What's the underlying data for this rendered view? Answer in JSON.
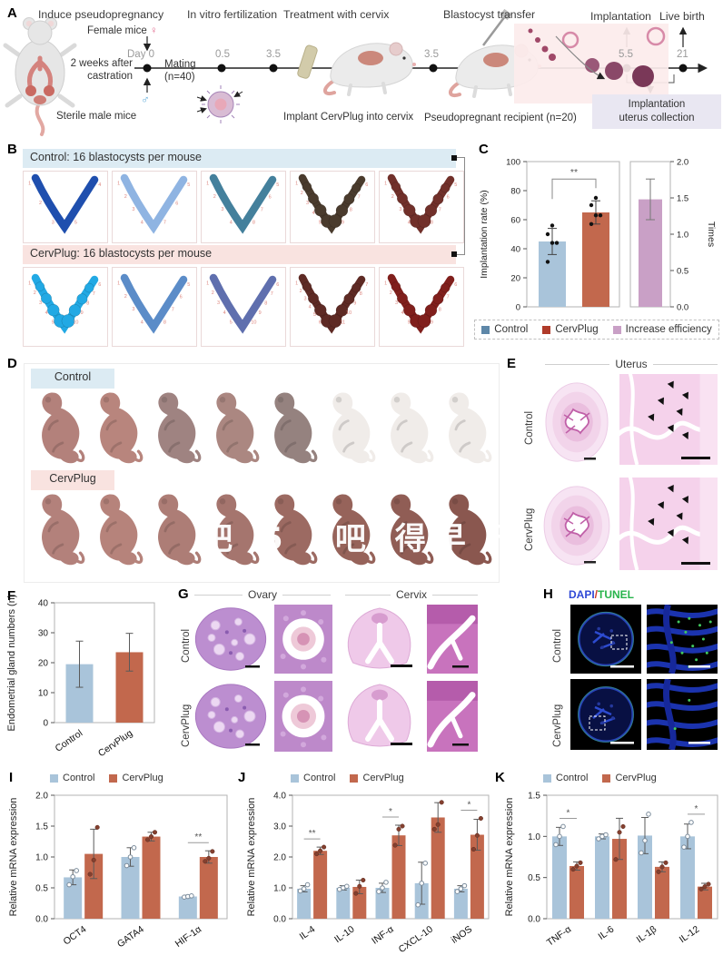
{
  "panels": {
    "a": {
      "label": "A",
      "stages": [
        "Induce pseudopregnancy",
        "In vitro fertilization",
        "Treatment with cervix",
        "Blastocyst transfer",
        "Implantation",
        "Live birth"
      ],
      "female_mice": "Female mice",
      "female_symbol": "♀",
      "male_symbol": "♂",
      "castration_l1": "2 weeks after",
      "castration_l2": "castration",
      "sterile": "Sterile male mice",
      "day0": "Day 0",
      "mating_l1": "Mating",
      "mating_l2": "(n=40)",
      "tick_05": "0.5",
      "tick_35a": "3.5",
      "tick_35b": "3.5",
      "tick_55": "5.5",
      "tick_21": "21",
      "implant": "Implant CervPlug into cervix",
      "recipient": "Pseudopregnant recipient (n=20)",
      "collection_l1": "Implantation",
      "collection_l2": "uterus collection"
    },
    "b": {
      "label": "B",
      "control_header": "Control: 16 blastocysts per mouse",
      "cervplug_header": "CervPlug: 16 blastocysts per mouse",
      "control_uteri": [
        {
          "color": "#1f4fae",
          "beaded": false,
          "sites": 5
        },
        {
          "color": "#8fb4e2",
          "beaded": false,
          "sites": 7
        },
        {
          "color": "#44809c",
          "beaded": false,
          "sites": 8
        },
        {
          "color": "#4a3b2d",
          "beaded": true,
          "sites": 9
        },
        {
          "color": "#71302a",
          "beaded": true,
          "sites": 8
        }
      ],
      "cervplug_uteri": [
        {
          "color": "#22a9e4",
          "beaded": true,
          "sites": 10
        },
        {
          "color": "#5b8cc8",
          "beaded": false,
          "sites": 8
        },
        {
          "color": "#5f6fae",
          "beaded": false,
          "sites": 10
        },
        {
          "color": "#5e2a24",
          "beaded": true,
          "sites": 11
        },
        {
          "color": "#801f1c",
          "beaded": true,
          "sites": 9
        }
      ]
    },
    "d": {
      "label": "D",
      "control_header": "Control",
      "cervplug_header": "CervPlug",
      "control_pups": [
        "live",
        "live",
        "live",
        "live",
        "live",
        "faded",
        "faded",
        "faded"
      ],
      "cervplug_pups": [
        "live",
        "live",
        "live",
        "live",
        "live",
        "live",
        "live",
        "live"
      ],
      "watermark": "吧 5 (吧 得早 刊三"
    },
    "e": {
      "label": "E",
      "title": "Uterus",
      "rows": [
        "Control",
        "CervPlug"
      ]
    },
    "f": {
      "label": "F"
    },
    "g": {
      "label": "G",
      "col1": "Ovary",
      "col2": "Cervix",
      "rows": [
        "Control",
        "CervPlug"
      ]
    },
    "h": {
      "label": "H",
      "dapi": "DAPI",
      "slash": "/",
      "tunel": "TUNEL",
      "rows": [
        "Control",
        "CervPlug"
      ]
    },
    "i": {
      "label": "I"
    },
    "j": {
      "label": "J"
    },
    "k": {
      "label": "K"
    }
  },
  "colors": {
    "control_bar": "#a9c4da",
    "cervplug_bar": "#c2684d",
    "increase_bar": "#c9a0c6",
    "control_band": "#dcebf3",
    "cervplug_band": "#f9e3e0",
    "dapi_blue": "#2f49d6",
    "slash_red": "#d03a2a",
    "tunel_green": "#28b44b"
  },
  "chart_data": [
    {
      "panel": "C",
      "type": "bar-dual-axis",
      "left_axis": {
        "label": "Implantation rate (%)",
        "lim": [
          0,
          100
        ],
        "ticks": [
          "0",
          "20",
          "40",
          "60",
          "80",
          "100"
        ]
      },
      "right_axis": {
        "label": "Times",
        "lim": [
          0,
          2
        ],
        "ticks": [
          "0.0",
          "0.5",
          "1.0",
          "1.5",
          "2.0"
        ]
      },
      "groups": [
        {
          "name": "Control",
          "value": 45,
          "err": 9,
          "points": [
            31,
            44,
            44,
            50,
            56
          ],
          "color": "#a9c4da",
          "axis": "left"
        },
        {
          "name": "CervPlug",
          "value": 65,
          "err": 8,
          "points": [
            57,
            63,
            63,
            70,
            75
          ],
          "color": "#c2684d",
          "axis": "left"
        },
        {
          "name": "Increase efficiency",
          "value": 1.48,
          "err": 0.28,
          "points": [],
          "color": "#c9a0c6",
          "axis": "right"
        }
      ],
      "sig": {
        "between": [
          "Control",
          "CervPlug"
        ],
        "text": "**"
      },
      "legend": [
        {
          "label": "Control",
          "color": "#5e87a8"
        },
        {
          "label": "CervPlug",
          "color": "#b03b2a"
        },
        {
          "label": "Increase efficiency",
          "color": "#c9a0c6"
        }
      ]
    },
    {
      "panel": "F",
      "type": "bar",
      "ylabel": "Endometrial gland numbers (n)",
      "ylim": [
        0,
        40
      ],
      "yticks": [
        "0",
        "10",
        "20",
        "30",
        "40"
      ],
      "categories": [
        "Control",
        "CervPlug"
      ],
      "values": [
        19.5,
        23.5
      ],
      "errors": [
        7.7,
        6.3
      ],
      "bar_colors": [
        "#a9c4da",
        "#c2684d"
      ]
    },
    {
      "panel": "I",
      "type": "grouped-bar",
      "ylabel": "Relative mRNA expression",
      "ylim": [
        0,
        2
      ],
      "yticks": [
        "0.0",
        "0.5",
        "1.0",
        "1.5",
        "2.0"
      ],
      "categories": [
        "OCT4",
        "GATA4",
        "HIF-1α"
      ],
      "series": [
        {
          "name": "Control",
          "color": "#a9c4da",
          "point_style": "hollow",
          "values": [
            0.67,
            1.0,
            0.36
          ],
          "errors": [
            0.12,
            0.15,
            0.02
          ],
          "points": [
            [
              0.55,
              0.68,
              0.78
            ],
            [
              0.86,
              1.0,
              1.15
            ],
            [
              0.35,
              0.36,
              0.37
            ]
          ]
        },
        {
          "name": "CervPlug",
          "color": "#c2684d",
          "point_style": "filled",
          "values": [
            1.05,
            1.33,
            1.0
          ],
          "errors": [
            0.4,
            0.07,
            0.1
          ],
          "points": [
            [
              0.72,
              0.95,
              1.48
            ],
            [
              1.28,
              1.33,
              1.4
            ],
            [
              0.93,
              0.98,
              1.09
            ]
          ]
        }
      ],
      "sig": [
        {
          "category": "HIF-1α",
          "text": "**"
        }
      ]
    },
    {
      "panel": "J",
      "type": "grouped-bar",
      "ylabel": "Relative mRNA expression",
      "ylim": [
        0,
        4
      ],
      "yticks": [
        "0.0",
        "1.0",
        "2.0",
        "3.0",
        "4.0"
      ],
      "categories": [
        "IL-4",
        "IL-10",
        "INF-α",
        "CXCL-10",
        "iNOS"
      ],
      "series": [
        {
          "name": "Control",
          "color": "#a9c4da",
          "point_style": "hollow",
          "values": [
            0.97,
            1.0,
            1.0,
            1.15,
            0.97
          ],
          "errors": [
            0.1,
            0.07,
            0.15,
            0.68,
            0.1
          ],
          "points": [
            [
              0.9,
              0.97,
              1.1
            ],
            [
              0.95,
              1.0,
              1.05
            ],
            [
              0.88,
              1.0,
              1.18
            ],
            [
              0.45,
              1.15,
              1.8
            ],
            [
              0.88,
              0.97,
              1.07
            ]
          ]
        },
        {
          "name": "CervPlug",
          "color": "#c2684d",
          "point_style": "filled",
          "values": [
            2.2,
            1.03,
            2.7,
            3.28,
            2.72
          ],
          "errors": [
            0.12,
            0.22,
            0.33,
            0.48,
            0.5
          ],
          "points": [
            [
              2.1,
              2.2,
              2.32
            ],
            [
              0.82,
              1.05,
              1.25
            ],
            [
              2.38,
              2.9,
              3.0
            ],
            [
              2.9,
              3.05,
              3.77
            ],
            [
              2.25,
              2.7,
              3.25
            ]
          ]
        }
      ],
      "sig": [
        {
          "category": "IL-4",
          "text": "**"
        },
        {
          "category": "INF-α",
          "text": "*"
        },
        {
          "category": "iNOS",
          "text": "*"
        }
      ]
    },
    {
      "panel": "K",
      "type": "grouped-bar",
      "ylabel": "Relative mRNA expression",
      "ylim": [
        0,
        1.5
      ],
      "yticks": [
        "0.0",
        "0.5",
        "1.0",
        "1.5"
      ],
      "categories": [
        "TNF-α",
        "IL-6",
        "IL-1β",
        "IL-12"
      ],
      "series": [
        {
          "name": "Control",
          "color": "#a9c4da",
          "point_style": "hollow",
          "values": [
            1.0,
            1.0,
            1.01,
            1.0
          ],
          "errors": [
            0.11,
            0.03,
            0.22,
            0.15
          ],
          "points": [
            [
              0.9,
              1.0,
              1.12
            ],
            [
              0.97,
              1.0,
              1.02
            ],
            [
              0.8,
              0.95,
              1.27
            ],
            [
              0.87,
              1.0,
              1.17
            ]
          ]
        },
        {
          "name": "CervPlug",
          "color": "#c2684d",
          "point_style": "filled",
          "values": [
            0.64,
            0.97,
            0.63,
            0.39
          ],
          "errors": [
            0.05,
            0.25,
            0.06,
            0.04
          ],
          "points": [
            [
              0.6,
              0.64,
              0.68
            ],
            [
              0.72,
              1.05,
              1.12
            ],
            [
              0.57,
              0.63,
              0.68
            ],
            [
              0.36,
              0.39,
              0.42
            ]
          ]
        }
      ],
      "sig": [
        {
          "category": "TNF-α",
          "text": "*"
        },
        {
          "category": "IL-12",
          "text": "*"
        }
      ]
    }
  ]
}
